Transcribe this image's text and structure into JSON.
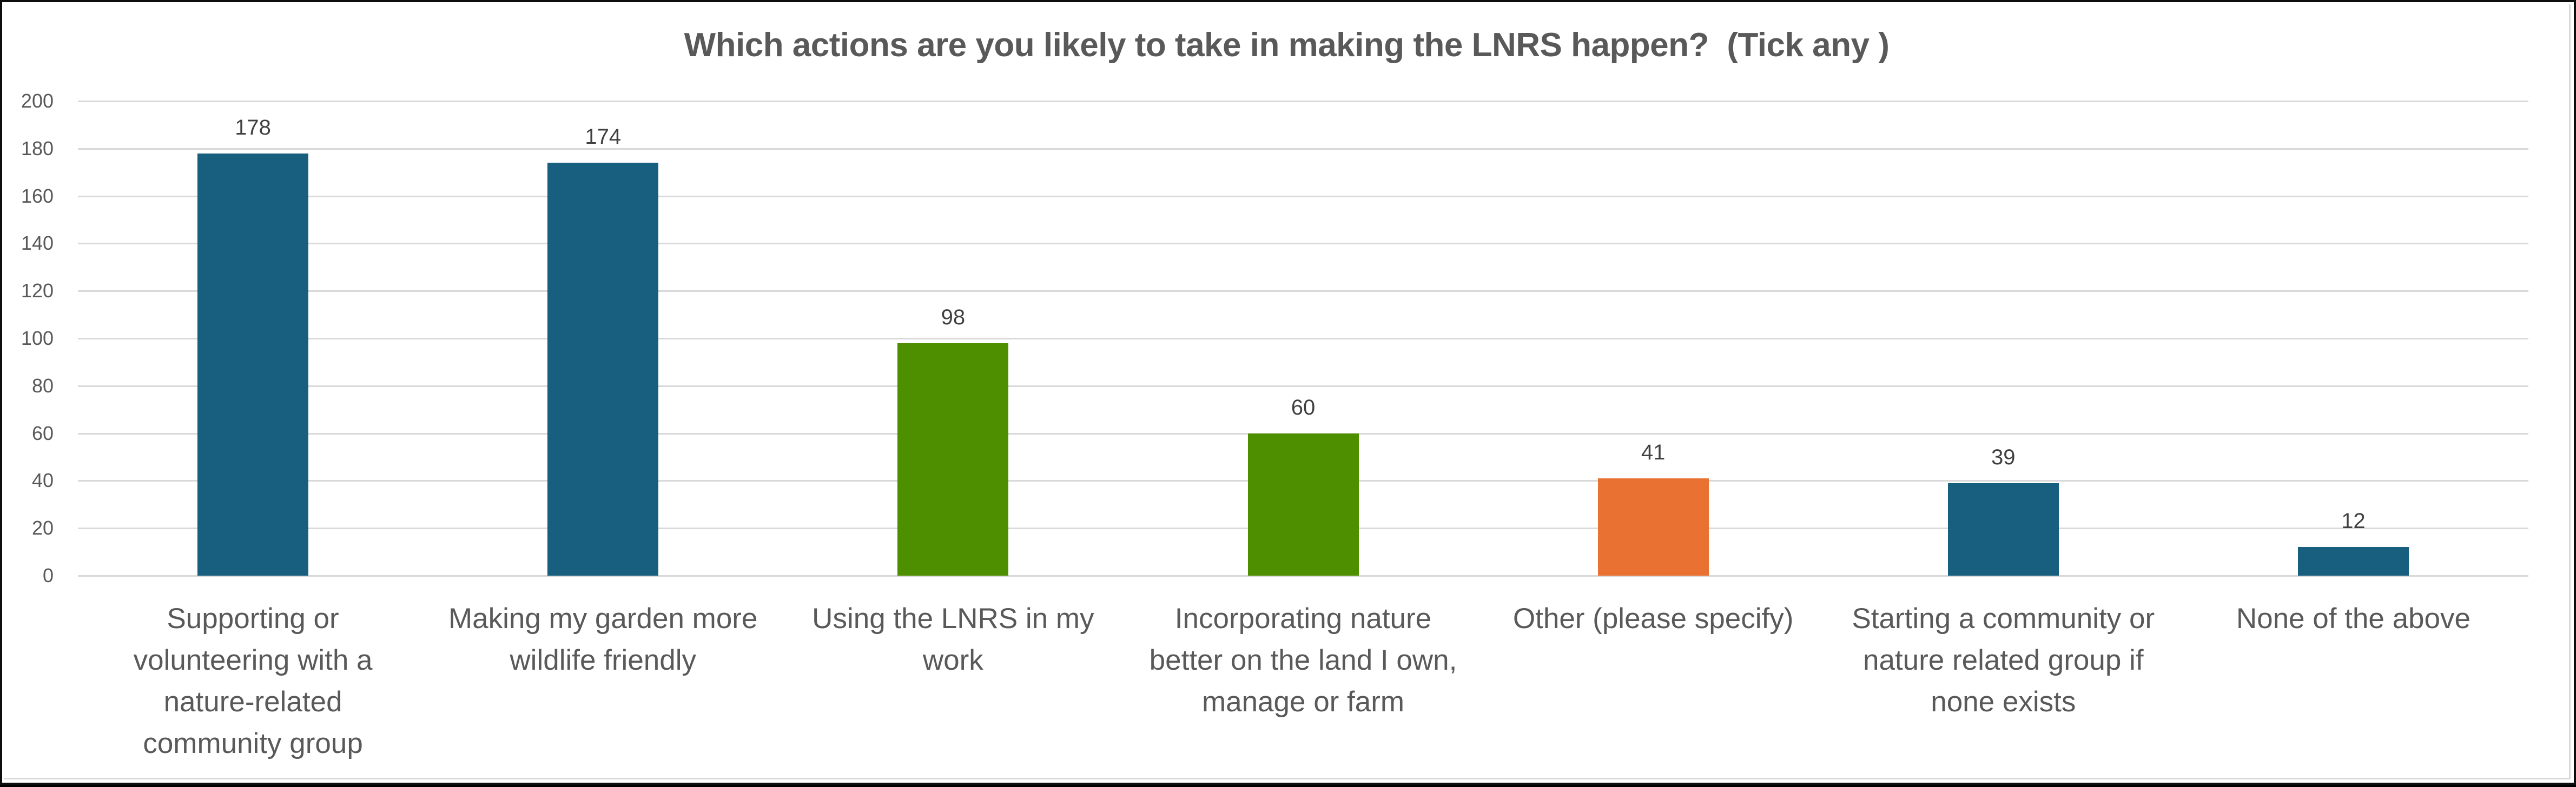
{
  "chart_data": {
    "type": "bar",
    "title": "Which actions are you likely to take in making the LNRS happen?  (Tick any )",
    "xlabel": "",
    "ylabel": "",
    "ylim": [
      0,
      200
    ],
    "yticks": [
      0,
      20,
      40,
      60,
      80,
      100,
      120,
      140,
      160,
      180,
      200
    ],
    "grid": true,
    "legend": "none",
    "data_labels": true,
    "categories": [
      "Supporting or volunteering with a nature-related community group",
      "Making my garden more wildlife friendly",
      "Using the LNRS in my work",
      "Incorporating nature better on the land I own, manage or farm",
      "Other (please specify)",
      "Starting a community or nature related group if none exists",
      "None of the above"
    ],
    "category_lines": [
      "Supporting or\nvolunteering with a\nnature-related\ncommunity group",
      "Making my garden more\nwildlife friendly",
      "Using the LNRS in my\nwork",
      "Incorporating nature\nbetter on the land I own,\nmanage or farm",
      "Other (please specify)",
      "Starting a community or\nnature related group if\nnone exists",
      "None of the above"
    ],
    "values": [
      178,
      174,
      98,
      60,
      41,
      39,
      12
    ],
    "bar_colors": [
      "#175E7F",
      "#175E7F",
      "#4E8F00",
      "#4E8F00",
      "#E97132",
      "#175E7F",
      "#175E7F"
    ]
  },
  "colors": {
    "blue": "#175E7F",
    "green": "#4E8F00",
    "orange": "#E97132",
    "gridline": "#D9D9D9",
    "text": "#595959"
  }
}
